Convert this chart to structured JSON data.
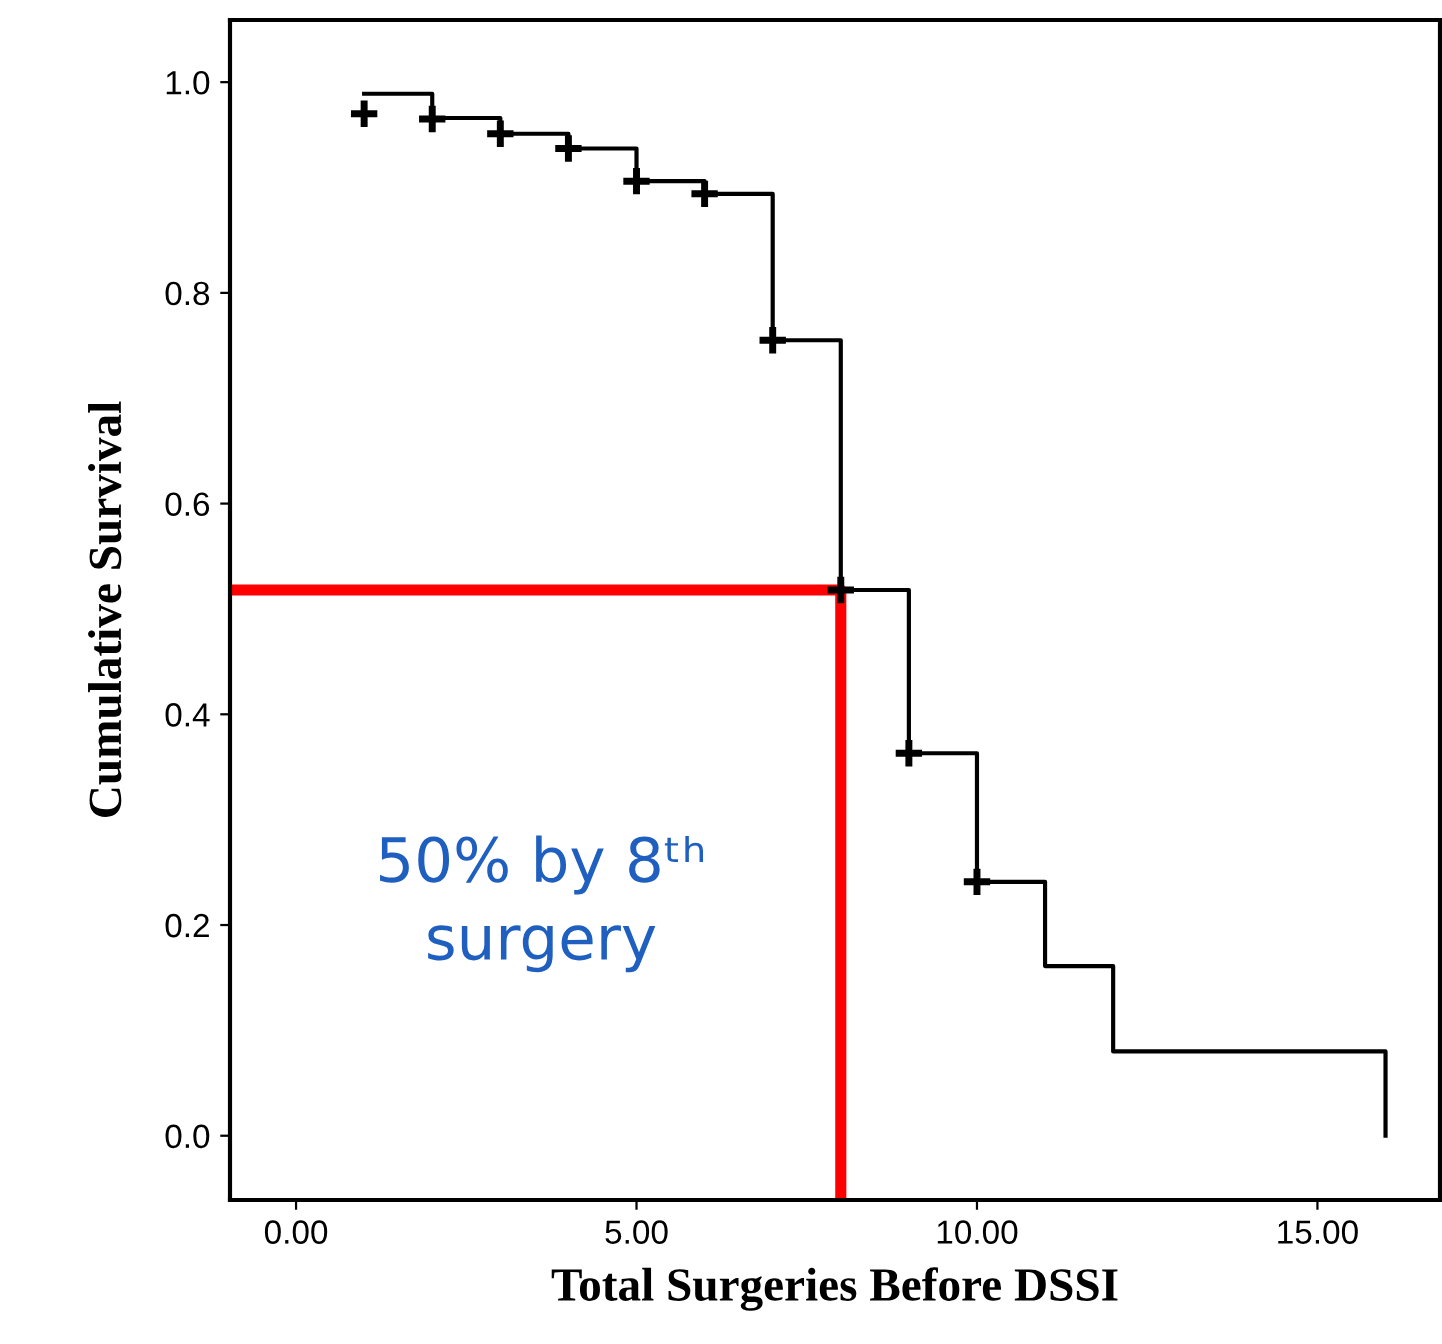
{
  "chart_data": {
    "type": "step",
    "xlabel": "Total Surgeries Before DSSI",
    "ylabel": "Cumulative Survival",
    "xlim": [
      -0.97,
      16.8
    ],
    "ylim": [
      -0.061,
      1.059
    ],
    "xticks": [
      {
        "value": 0,
        "label": "0.00"
      },
      {
        "value": 5,
        "label": "5.00"
      },
      {
        "value": 10,
        "label": "10.00"
      },
      {
        "value": 15,
        "label": "15.00"
      }
    ],
    "yticks": [
      {
        "value": 0,
        "label": "0.0"
      },
      {
        "value": 0.2,
        "label": "0.2"
      },
      {
        "value": 0.4,
        "label": "0.4"
      },
      {
        "value": 0.6,
        "label": "0.6"
      },
      {
        "value": 0.8,
        "label": "0.8"
      },
      {
        "value": 1.0,
        "label": "1.0"
      }
    ],
    "grid": false,
    "legend": false,
    "series": [
      {
        "color": "#000000",
        "x": [
          1,
          2,
          3,
          4,
          5,
          6,
          7,
          8,
          9,
          10,
          11,
          12,
          16
        ],
        "values": [
          0.989,
          0.966,
          0.951,
          0.937,
          0.906,
          0.894,
          0.755,
          0.518,
          0.363,
          0.241,
          0.161,
          0.08,
          0.0
        ]
      },
      {
        "type": "scatter",
        "color": "#000000",
        "marker": "cross",
        "x": [
          1,
          2,
          3,
          4,
          5,
          6,
          7,
          8,
          9,
          10
        ],
        "values": [
          0.97,
          0.965,
          0.951,
          0.937,
          0.906,
          0.894,
          0.755,
          0.518,
          0.363,
          0.241
        ]
      },
      {
        "type": "line",
        "color": "#ff0000",
        "x": [
          -0.97,
          8,
          8
        ],
        "values": [
          0.518,
          0.518,
          -0.061
        ]
      }
    ],
    "annotations": [
      "50% by 8ᵗʰ\nsurgery"
    ]
  }
}
